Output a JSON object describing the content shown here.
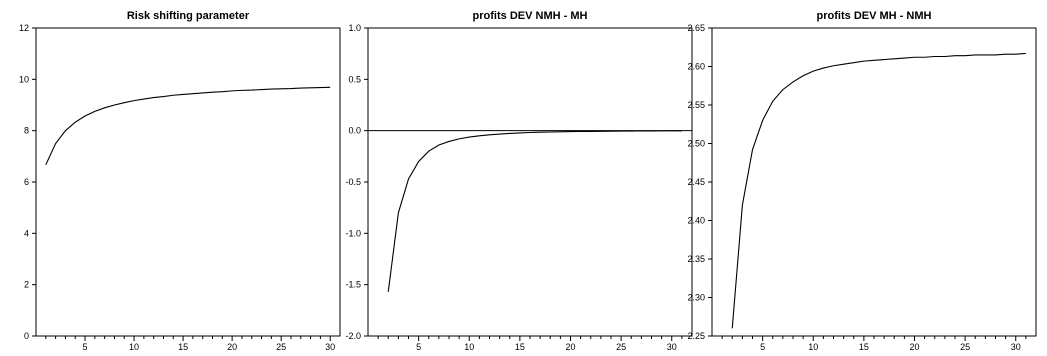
{
  "chart_data": [
    {
      "type": "line",
      "title": "Risk shifting parameter",
      "xlabel": "",
      "ylabel": "",
      "xlim": [
        0,
        31
      ],
      "ylim": [
        0,
        12
      ],
      "xticks": [
        5,
        10,
        15,
        20,
        25,
        30
      ],
      "yticks": [
        0,
        2,
        4,
        6,
        8,
        10,
        12
      ],
      "ytick_labels": [
        "0",
        "2",
        "4",
        "6",
        "8",
        "10",
        "12"
      ],
      "zero_line": false,
      "grid": false,
      "x": [
        1,
        2,
        3,
        4,
        5,
        6,
        7,
        8,
        9,
        10,
        11,
        12,
        13,
        14,
        15,
        16,
        17,
        18,
        19,
        20,
        21,
        22,
        23,
        24,
        25,
        26,
        27,
        28,
        29,
        30
      ],
      "values": [
        6.67,
        7.5,
        8.0,
        8.33,
        8.57,
        8.75,
        8.89,
        9.0,
        9.09,
        9.17,
        9.23,
        9.29,
        9.33,
        9.38,
        9.41,
        9.44,
        9.47,
        9.5,
        9.52,
        9.55,
        9.57,
        9.58,
        9.6,
        9.62,
        9.63,
        9.64,
        9.66,
        9.67,
        9.68,
        9.69
      ]
    },
    {
      "type": "line",
      "title": "profits DEV NMH - MH",
      "xlabel": "",
      "ylabel": "",
      "xlim": [
        0,
        32
      ],
      "ylim": [
        -2.0,
        1.0
      ],
      "xticks": [
        5,
        10,
        15,
        20,
        25,
        30
      ],
      "yticks": [
        -2.0,
        -1.5,
        -1.0,
        -0.5,
        0.0,
        0.5,
        1.0
      ],
      "ytick_labels": [
        "-2.0",
        "-1.5",
        "-1.0",
        "-0.5",
        "0.0",
        "0.5",
        "1.0"
      ],
      "zero_line": true,
      "grid": false,
      "x": [
        2,
        3,
        4,
        5,
        6,
        7,
        8,
        9,
        10,
        11,
        12,
        13,
        14,
        15,
        16,
        17,
        18,
        19,
        20,
        21,
        22,
        23,
        24,
        25,
        26,
        27,
        28,
        29,
        30,
        31
      ],
      "values": [
        -1.57,
        -0.8,
        -0.47,
        -0.3,
        -0.2,
        -0.14,
        -0.105,
        -0.08,
        -0.062,
        -0.05,
        -0.04,
        -0.033,
        -0.027,
        -0.022,
        -0.018,
        -0.015,
        -0.013,
        -0.011,
        -0.009,
        -0.008,
        -0.007,
        -0.006,
        -0.005,
        -0.004,
        -0.0035,
        -0.003,
        -0.0025,
        -0.002,
        -0.0015,
        -0.001
      ]
    },
    {
      "type": "line",
      "title": "profits DEV MH - NMH",
      "xlabel": "",
      "ylabel": "",
      "xlim": [
        0,
        32
      ],
      "ylim": [
        2.25,
        2.65
      ],
      "xticks": [
        5,
        10,
        15,
        20,
        25,
        30
      ],
      "yticks": [
        2.25,
        2.3,
        2.35,
        2.4,
        2.45,
        2.5,
        2.55,
        2.6,
        2.65
      ],
      "ytick_labels": [
        "2.25",
        "2.30",
        "2.35",
        "2.40",
        "2.45",
        "2.50",
        "2.55",
        "2.60",
        "2.65"
      ],
      "zero_line": false,
      "grid": false,
      "x": [
        2,
        3,
        4,
        5,
        6,
        7,
        8,
        9,
        10,
        11,
        12,
        13,
        14,
        15,
        16,
        17,
        18,
        19,
        20,
        21,
        22,
        23,
        24,
        25,
        26,
        27,
        28,
        29,
        30,
        31
      ],
      "values": [
        2.26,
        2.42,
        2.492,
        2.53,
        2.555,
        2.57,
        2.58,
        2.588,
        2.594,
        2.598,
        2.601,
        2.603,
        2.605,
        2.607,
        2.608,
        2.609,
        2.61,
        2.611,
        2.612,
        2.612,
        2.613,
        2.613,
        2.614,
        2.614,
        2.615,
        2.615,
        2.615,
        2.616,
        2.616,
        2.617
      ]
    }
  ]
}
